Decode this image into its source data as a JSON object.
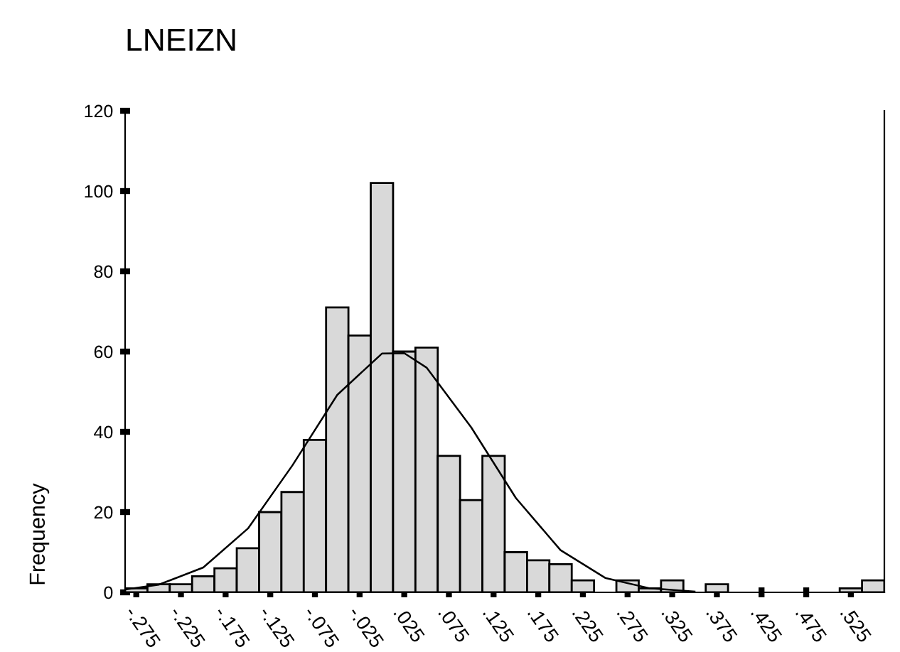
{
  "chart_data": {
    "type": "histogram",
    "title": "LNEIZN",
    "ylabel": "Frequency",
    "bins": [
      -0.2875,
      -0.2625,
      -0.2375,
      -0.2125,
      -0.1875,
      -0.1625,
      -0.1375,
      -0.1125,
      -0.0875,
      -0.0625,
      -0.0375,
      -0.0125,
      0.0125,
      0.0375,
      0.0625,
      0.0875,
      0.1125,
      0.1375,
      0.1625,
      0.1875,
      0.2125,
      0.2375,
      0.2625,
      0.2875,
      0.3125,
      0.3375,
      0.3625,
      0.3875,
      0.4125,
      0.4375,
      0.4625,
      0.4875,
      0.5125,
      0.5375,
      0.5625
    ],
    "values": [
      1,
      2,
      2,
      4,
      6,
      11,
      20,
      25,
      38,
      71,
      64,
      102,
      60,
      61,
      34,
      23,
      34,
      10,
      8,
      7,
      3,
      0,
      3,
      1,
      3,
      0,
      2,
      0,
      0,
      0,
      0,
      0,
      1,
      3
    ],
    "color": "#d9d9d9",
    "series": [
      {
        "type": "line",
        "color": "#000000",
        "x": [
          -0.2875,
          -0.25,
          -0.2,
          -0.15,
          -0.1,
          -0.05,
          0,
          0.025,
          0.05,
          0.1,
          0.15,
          0.2,
          0.25,
          0.3,
          0.35
        ],
        "values": [
          0.7,
          1.9,
          6.2,
          15.9,
          31.7,
          49.2,
          59.5,
          59.6,
          56,
          41.1,
          23.5,
          10.5,
          3.6,
          1.0,
          0.2
        ]
      }
    ],
    "xlim": [
      -0.2875,
      0.5625
    ],
    "xticks": [
      {
        "value": -0.275,
        "label": "-.275"
      },
      {
        "value": -0.225,
        "label": "-.225"
      },
      {
        "value": -0.175,
        "label": "-.175"
      },
      {
        "value": -0.125,
        "label": "-.125"
      },
      {
        "value": -0.075,
        "label": "-.075"
      },
      {
        "value": -0.025,
        "label": "-.025"
      },
      {
        "value": 0.025,
        "label": ".025"
      },
      {
        "value": 0.075,
        "label": ".075"
      },
      {
        "value": 0.125,
        "label": ".125"
      },
      {
        "value": 0.175,
        "label": ".175"
      },
      {
        "value": 0.225,
        "label": ".225"
      },
      {
        "value": 0.275,
        "label": ".275"
      },
      {
        "value": 0.325,
        "label": ".325"
      },
      {
        "value": 0.375,
        "label": ".375"
      },
      {
        "value": 0.425,
        "label": ".425"
      },
      {
        "value": 0.475,
        "label": ".475"
      },
      {
        "value": 0.525,
        "label": ".525"
      }
    ],
    "ylim": [
      0,
      120
    ],
    "yticks": [
      0,
      20,
      40,
      60,
      80,
      100,
      120
    ],
    "grid": false,
    "legend": false
  }
}
